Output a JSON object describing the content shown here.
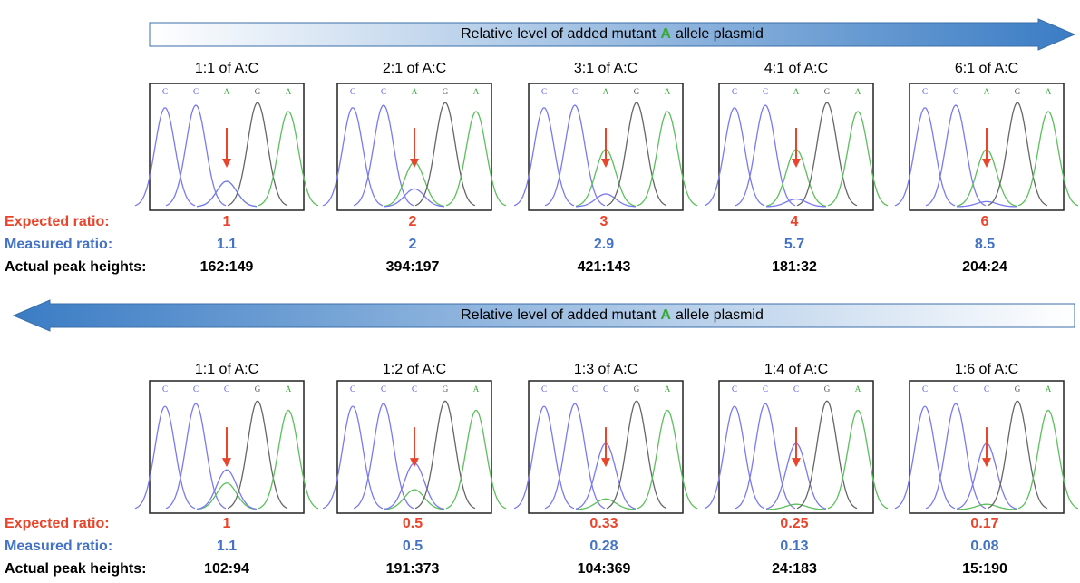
{
  "top": {
    "arrow_label": [
      "Relative level of added mutant",
      "A",
      "allele plasmid"
    ],
    "panels": [
      {
        "title": "1:1 of A:C",
        "bases": [
          "C",
          "C",
          "A",
          "G",
          "A"
        ]
      },
      {
        "title": "2:1 of A:C",
        "bases": [
          "C",
          "C",
          "A",
          "G",
          "A"
        ]
      },
      {
        "title": "3:1 of A:C",
        "bases": [
          "C",
          "C",
          "A",
          "G",
          "A"
        ]
      },
      {
        "title": "4:1 of A:C",
        "bases": [
          "C",
          "C",
          "A",
          "G",
          "A"
        ]
      },
      {
        "title": "6:1 of A:C",
        "bases": [
          "C",
          "C",
          "A",
          "G",
          "A"
        ]
      }
    ],
    "expected_label": "Expected ratio:",
    "expected": [
      1,
      2,
      3,
      4,
      6
    ],
    "measured_label": "Measured ratio:",
    "measured": [
      1.1,
      2,
      2.9,
      5.7,
      8.5
    ],
    "peaks_label": "Actual peak heights:",
    "peaks": [
      "162:149",
      "394:197",
      "421:143",
      "181:32",
      "204:24"
    ]
  },
  "bottom": {
    "arrow_label": [
      "Relative level of added mutant",
      "A",
      "allele plasmid"
    ],
    "panels": [
      {
        "title": "1:1 of A:C",
        "bases": [
          "C",
          "C",
          "C",
          "G",
          "A"
        ]
      },
      {
        "title": "1:2 of A:C",
        "bases": [
          "C",
          "C",
          "C",
          "G",
          "A"
        ]
      },
      {
        "title": "1:3 of A:C",
        "bases": [
          "C",
          "C",
          "C",
          "G",
          "A"
        ]
      },
      {
        "title": "1:4 of A:C",
        "bases": [
          "C",
          "C",
          "C",
          "G",
          "A"
        ]
      },
      {
        "title": "1:6 of A:C",
        "bases": [
          "C",
          "C",
          "C",
          "G",
          "A"
        ]
      }
    ],
    "expected_label": "Expected ratio:",
    "expected": [
      1,
      0.5,
      0.33,
      0.25,
      0.17
    ],
    "measured_label": "Measured ratio:",
    "measured": [
      1.1,
      0.5,
      0.28,
      0.13,
      0.08
    ],
    "peaks_label": "Actual peak heights:",
    "peaks": [
      "102:94",
      "191:373",
      "104:369",
      "24:183",
      "15:190"
    ]
  }
}
